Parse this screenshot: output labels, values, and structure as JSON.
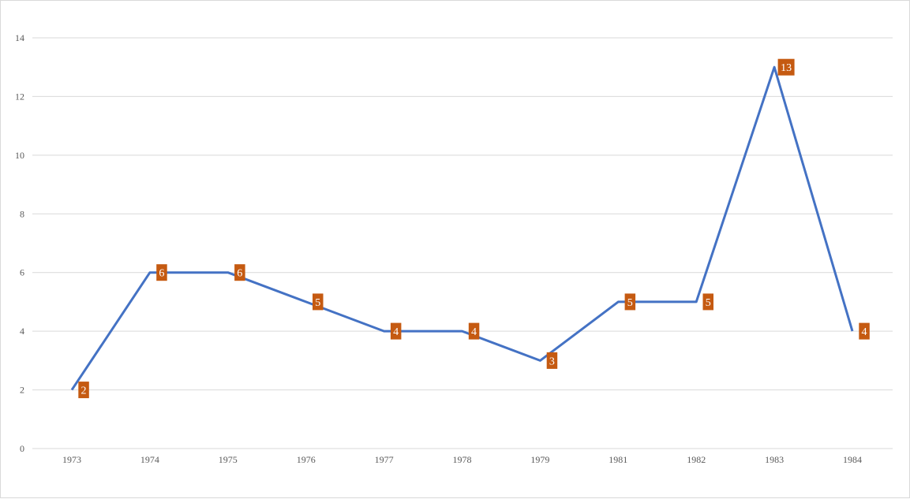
{
  "chart_data": {
    "type": "line",
    "categories": [
      "1973",
      "1974",
      "1975",
      "1976",
      "1977",
      "1978",
      "1979",
      "1981",
      "1982",
      "1983",
      "1984"
    ],
    "series": [
      {
        "values": [
          2,
          6,
          6,
          5,
          4,
          4,
          3,
          5,
          5,
          13,
          4
        ]
      }
    ],
    "yticks": [
      "0",
      "2",
      "4",
      "6",
      "8",
      "10",
      "12",
      "14"
    ],
    "ylim": [
      0,
      14
    ],
    "grid": true,
    "data_labels": true,
    "colors": {
      "line": "#4472c4",
      "label_bg": "#c55a11",
      "label_text": "#ffffff",
      "grid": "#d9d9d9",
      "tick_text": "#595959"
    }
  }
}
